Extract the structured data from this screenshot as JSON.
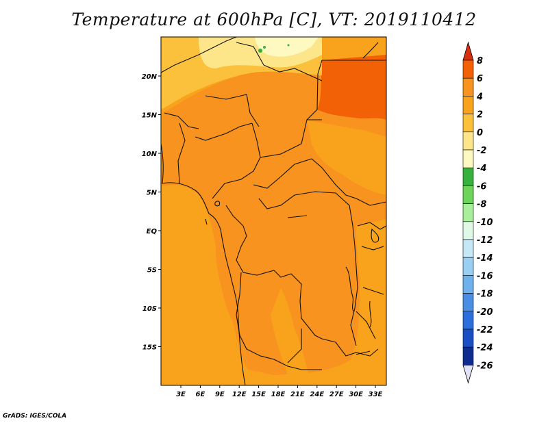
{
  "title": "Temperature at 600hPa [C], VT: 2019110412",
  "credit": "GrADS: IGES/COLA",
  "map": {
    "lon_labels": [
      "3E",
      "6E",
      "9E",
      "12E",
      "15E",
      "18E",
      "21E",
      "24E",
      "27E",
      "30E",
      "33E"
    ],
    "lat_labels": [
      "20N",
      "15N",
      "10N",
      "5N",
      "EQ",
      "5S",
      "10S",
      "15S"
    ],
    "base_color": "#f9a21c",
    "dominant_color": "#f7931e"
  },
  "colorbar": {
    "labels": [
      "8",
      "6",
      "4",
      "2",
      "0",
      "-2",
      "-4",
      "-6",
      "-8",
      "-10",
      "-12",
      "-14",
      "-16",
      "-18",
      "-20",
      "-22",
      "-24",
      "-26"
    ],
    "colors": [
      "#d7300c",
      "#f26106",
      "#f7931e",
      "#f9a21c",
      "#fcc13c",
      "#fde58a",
      "#fef9c0",
      "#37b13e",
      "#6dd35b",
      "#a9ee9b",
      "#dff9e6",
      "#c6e7f6",
      "#99d0f2",
      "#6eb1ec",
      "#4a8ee3",
      "#2c6fdc",
      "#1a4fc4",
      "#0d2c8e"
    ],
    "top_arrow_color": "#d7300c",
    "bottom_arrow_color": "#e2e2f6"
  }
}
